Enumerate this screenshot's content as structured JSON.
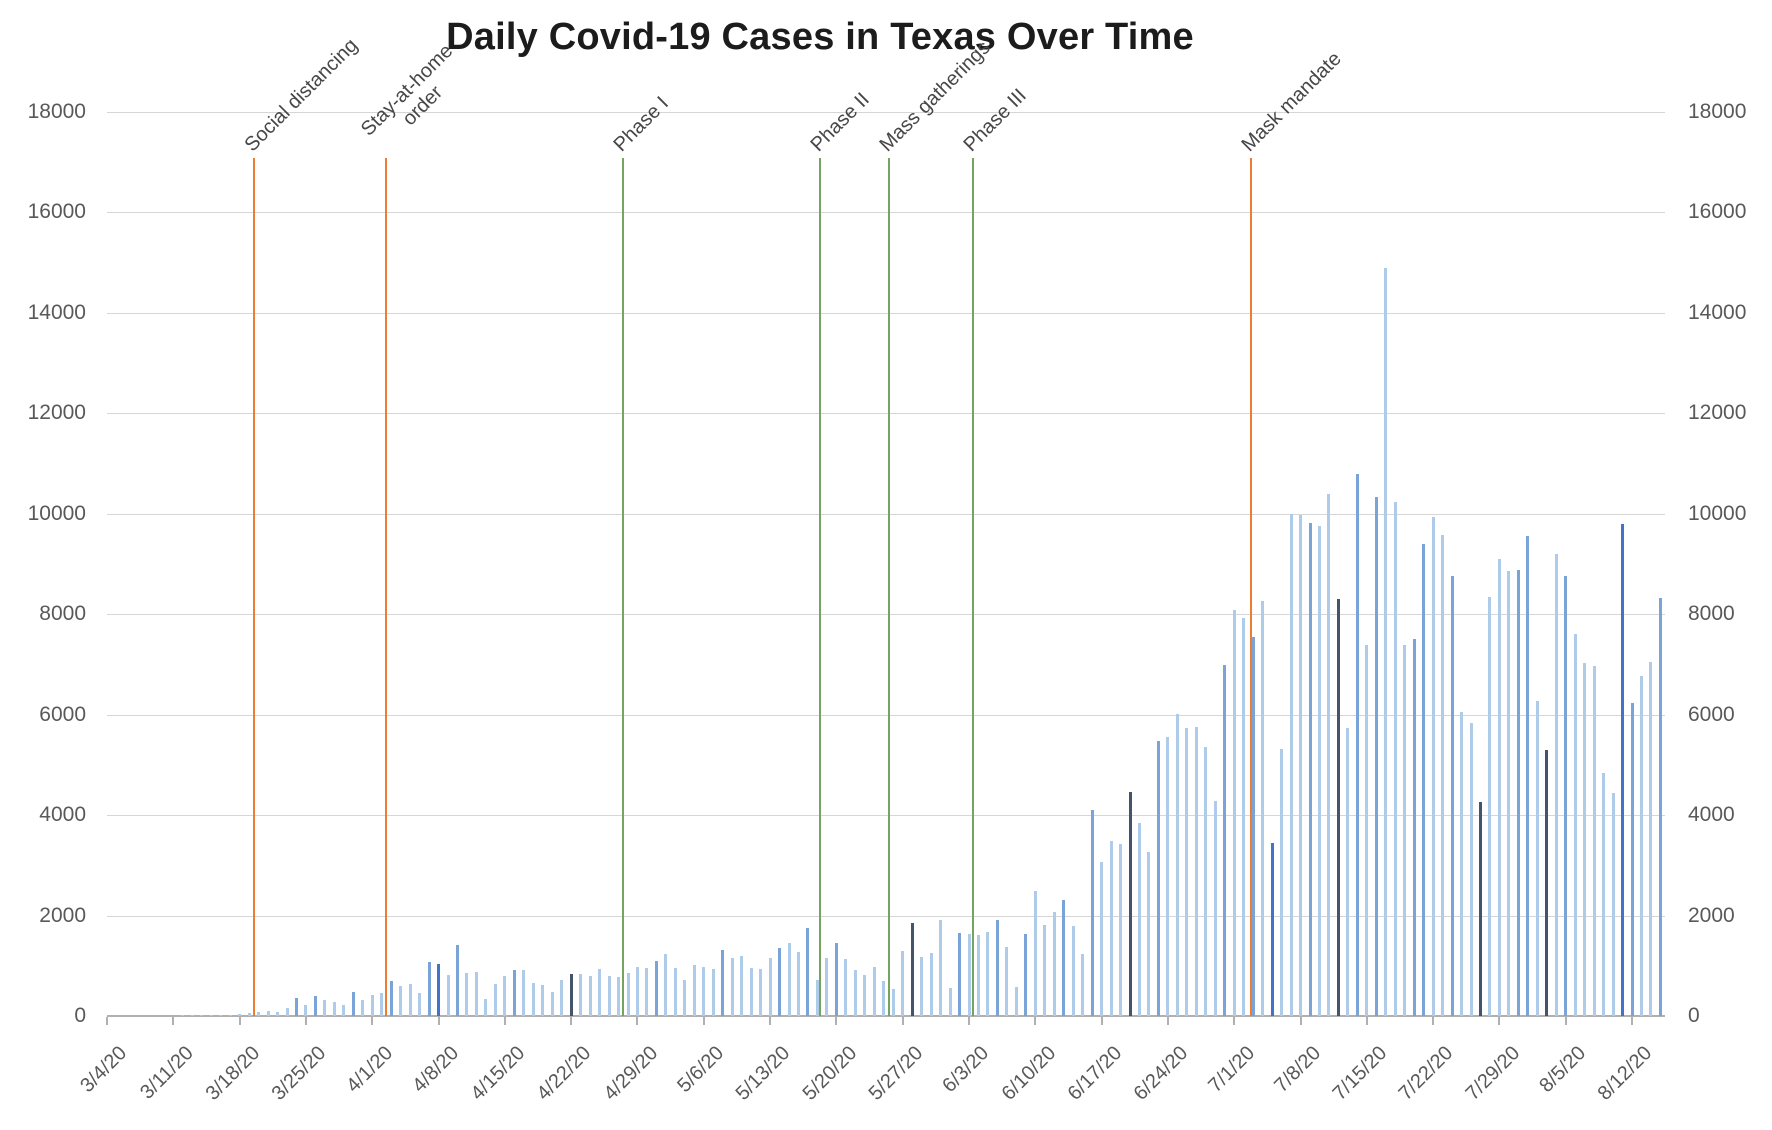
{
  "chart_data": {
    "type": "bar",
    "title": "Daily Covid-19 Cases in Texas Over Time",
    "xlabel": "",
    "ylabel": "",
    "ylim": [
      0,
      18000
    ],
    "y_ticks": [
      0,
      2000,
      4000,
      6000,
      8000,
      10000,
      12000,
      14000,
      16000,
      18000
    ],
    "y_axis_sides": "both",
    "grid": "horizontal",
    "legend_position": "none",
    "x_tick_labels": [
      "3/4/20",
      "3/11/20",
      "3/18/20",
      "3/25/20",
      "4/1/20",
      "4/8/20",
      "4/15/20",
      "4/22/20",
      "4/29/20",
      "5/6/20",
      "5/13/20",
      "5/20/20",
      "5/27/20",
      "6/3/20",
      "6/10/20",
      "6/17/20",
      "6/24/20",
      "7/1/20",
      "7/8/20",
      "7/15/20",
      "7/22/20",
      "7/29/20",
      "8/5/20",
      "8/12/20"
    ],
    "dates": [
      "3/4/20",
      "3/5/20",
      "3/6/20",
      "3/7/20",
      "3/8/20",
      "3/9/20",
      "3/10/20",
      "3/11/20",
      "3/12/20",
      "3/13/20",
      "3/14/20",
      "3/15/20",
      "3/16/20",
      "3/17/20",
      "3/18/20",
      "3/19/20",
      "3/20/20",
      "3/21/20",
      "3/22/20",
      "3/23/20",
      "3/24/20",
      "3/25/20",
      "3/26/20",
      "3/27/20",
      "3/28/20",
      "3/29/20",
      "3/30/20",
      "3/31/20",
      "4/1/20",
      "4/2/20",
      "4/3/20",
      "4/4/20",
      "4/5/20",
      "4/6/20",
      "4/7/20",
      "4/8/20",
      "4/9/20",
      "4/10/20",
      "4/11/20",
      "4/12/20",
      "4/13/20",
      "4/14/20",
      "4/15/20",
      "4/16/20",
      "4/17/20",
      "4/18/20",
      "4/19/20",
      "4/20/20",
      "4/21/20",
      "4/22/20",
      "4/23/20",
      "4/24/20",
      "4/25/20",
      "4/26/20",
      "4/27/20",
      "4/28/20",
      "4/29/20",
      "4/30/20",
      "5/1/20",
      "5/2/20",
      "5/3/20",
      "5/4/20",
      "5/5/20",
      "5/6/20",
      "5/7/20",
      "5/8/20",
      "5/9/20",
      "5/10/20",
      "5/11/20",
      "5/12/20",
      "5/13/20",
      "5/14/20",
      "5/15/20",
      "5/16/20",
      "5/17/20",
      "5/18/20",
      "5/19/20",
      "5/20/20",
      "5/21/20",
      "5/22/20",
      "5/23/20",
      "5/24/20",
      "5/25/20",
      "5/26/20",
      "5/27/20",
      "5/28/20",
      "5/29/20",
      "5/30/20",
      "5/31/20",
      "6/1/20",
      "6/2/20",
      "6/3/20",
      "6/4/20",
      "6/5/20",
      "6/6/20",
      "6/7/20",
      "6/8/20",
      "6/9/20",
      "6/10/20",
      "6/11/20",
      "6/12/20",
      "6/13/20",
      "6/14/20",
      "6/15/20",
      "6/16/20",
      "6/17/20",
      "6/18/20",
      "6/19/20",
      "6/20/20",
      "6/21/20",
      "6/22/20",
      "6/23/20",
      "6/24/20",
      "6/25/20",
      "6/26/20",
      "6/27/20",
      "6/28/20",
      "6/29/20",
      "6/30/20",
      "7/1/20",
      "7/2/20",
      "7/3/20",
      "7/4/20",
      "7/5/20",
      "7/6/20",
      "7/7/20",
      "7/8/20",
      "7/9/20",
      "7/10/20",
      "7/11/20",
      "7/12/20",
      "7/13/20",
      "7/14/20",
      "7/15/20",
      "7/16/20",
      "7/17/20",
      "7/18/20",
      "7/19/20",
      "7/20/20",
      "7/21/20",
      "7/22/20",
      "7/23/20",
      "7/24/20",
      "7/25/20",
      "7/26/20",
      "7/27/20",
      "7/28/20",
      "7/29/20",
      "7/30/20",
      "7/31/20",
      "8/1/20",
      "8/2/20",
      "8/3/20",
      "8/4/20",
      "8/5/20",
      "8/6/20",
      "8/7/20",
      "8/8/20",
      "8/9/20",
      "8/10/20",
      "8/11/20",
      "8/12/20",
      "8/13/20",
      "8/14/20",
      "8/15/20"
    ],
    "values": [
      0,
      0,
      0,
      0,
      0,
      0,
      0,
      0,
      3,
      5,
      8,
      10,
      15,
      25,
      40,
      60,
      85,
      95,
      70,
      160,
      360,
      215,
      395,
      310,
      275,
      210,
      475,
      310,
      415,
      460,
      690,
      605,
      640,
      460,
      1085,
      1035,
      825,
      1410,
      850,
      885,
      345,
      640,
      805,
      925,
      925,
      655,
      620,
      485,
      710,
      840,
      845,
      790,
      930,
      790,
      775,
      855,
      970,
      965,
      1100,
      1230,
      950,
      720,
      1020,
      985,
      930,
      1310,
      1150,
      1195,
      950,
      930,
      1150,
      1345,
      1445,
      1280,
      1760,
      710,
      1150,
      1455,
      1130,
      920,
      820,
      970,
      700,
      530,
      1290,
      1850,
      1175,
      1260,
      1910,
      550,
      1650,
      1640,
      1620,
      1675,
      1920,
      1380,
      570,
      1640,
      2480,
      1810,
      2080,
      2300,
      1795,
      1225,
      4100,
      3070,
      3480,
      3415,
      4455,
      3835,
      3270,
      5480,
      5550,
      6015,
      5735,
      5750,
      5350,
      4280,
      6990,
      8080,
      7915,
      7555,
      8260,
      3450,
      5320,
      10000,
      9980,
      9810,
      9765,
      10390,
      8300,
      5740,
      10790,
      7390,
      10340,
      14900,
      10230,
      7390,
      7500,
      9390,
      9940,
      9580,
      8760,
      6060,
      5840,
      4260,
      8340,
      9090,
      8855,
      8890,
      9550,
      6270,
      5300,
      9190,
      8755,
      7615,
      7025,
      6975,
      4830,
      4450,
      9790,
      6240,
      6760,
      7045,
      8320
    ],
    "bar_colors": {
      "default": "#aecbe9",
      "medium": "#7aa4d8",
      "dark": "#44546a",
      "bright": "#4472c4"
    },
    "bar_color_overrides": {
      "medium": [
        "3/24/20",
        "3/26/20",
        "3/30/20",
        "4/3/20",
        "4/7/20",
        "4/10/20",
        "4/16/20",
        "5/1/20",
        "5/8/20",
        "5/14/20",
        "5/17/20",
        "5/20/20",
        "6/2/20",
        "6/6/20",
        "6/9/20",
        "6/13/20",
        "6/16/20",
        "6/23/20",
        "6/30/20",
        "7/3/20",
        "7/9/20",
        "7/14/20",
        "7/16/20",
        "7/20/20",
        "7/21/20",
        "7/24/20",
        "7/31/20",
        "8/1/20",
        "8/5/20",
        "8/12/20",
        "8/15/20"
      ],
      "dark": [
        "4/22/20",
        "5/28/20",
        "6/20/20",
        "7/12/20",
        "7/27/20",
        "8/3/20"
      ],
      "bright": [
        "4/8/20",
        "7/5/20",
        "8/11/20"
      ]
    },
    "events": [
      {
        "label": "Social distancing",
        "line_color": "orange",
        "day_index": 15.5
      },
      {
        "label": "Stay-at-home\norder",
        "line_color": "orange",
        "day_index": 29.5
      },
      {
        "label": "Phase I",
        "line_color": "green",
        "day_index": 54.5
      },
      {
        "label": "Phase II",
        "line_color": "green",
        "day_index": 75.3
      },
      {
        "label": "Mass gatherings",
        "line_color": "green",
        "day_index": 82.6
      },
      {
        "label": "Phase III",
        "line_color": "green",
        "day_index": 91.4
      },
      {
        "label": "Mask mandate",
        "line_color": "orange",
        "day_index": 120.8
      }
    ],
    "event_line_colors": {
      "orange": "#ed7d31",
      "green": "#74a45f"
    }
  }
}
